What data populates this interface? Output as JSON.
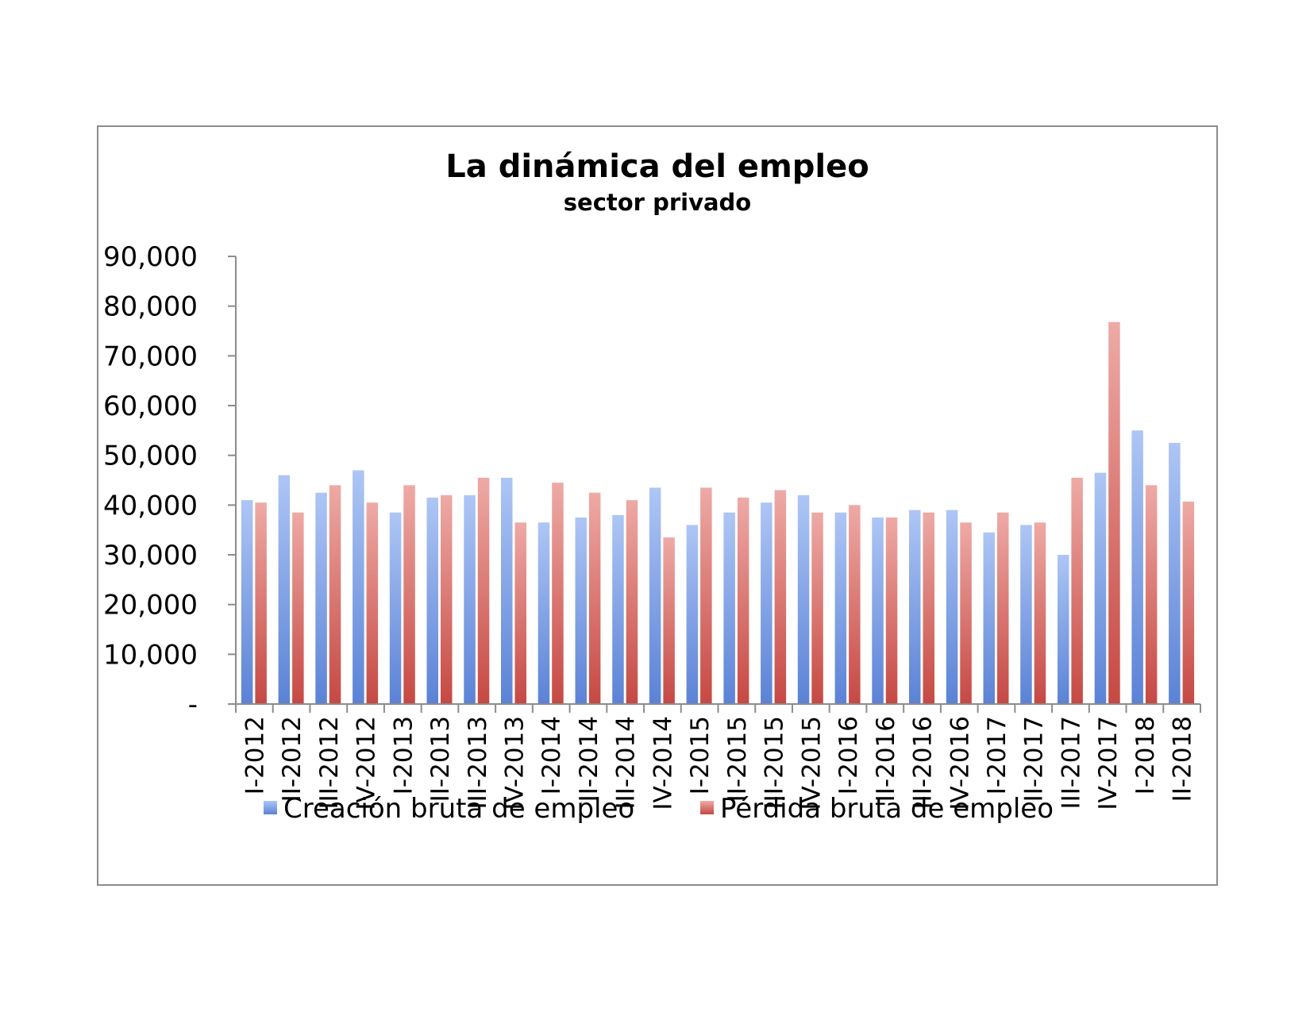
{
  "chart_data": {
    "type": "bar",
    "title": "La dinámica del empleo",
    "subtitle": "sector privado",
    "xlabel": "",
    "ylabel": "",
    "ylim": [
      0,
      90000
    ],
    "yticks": [
      0,
      10000,
      20000,
      30000,
      40000,
      50000,
      60000,
      70000,
      80000,
      90000
    ],
    "ytick_labels": [
      "-",
      "10,000",
      "20,000",
      "30,000",
      "40,000",
      "50,000",
      "60,000",
      "70,000",
      "80,000",
      "90,000"
    ],
    "grid": false,
    "legend_position": "bottom",
    "categories": [
      "I-2012",
      "II-2012",
      "III-2012",
      "IV-2012",
      "I-2013",
      "II-2013",
      "III-2013",
      "IV-2013",
      "I-2014",
      "II-2014",
      "III-2014",
      "IV-2014",
      "I-2015",
      "II-2015",
      "III-2015",
      "IV-2015",
      "I-2016",
      "II-2016",
      "III-2016",
      "IV-2016",
      "I-2017",
      "II-2017",
      "III-2017",
      "IV-2017",
      "I-2018",
      "II-2018"
    ],
    "series": [
      {
        "name": "Creación bruta de empleo",
        "color": "#7b9fe0",
        "color_light": "#aec6f5",
        "values": [
          41000,
          46000,
          42500,
          47000,
          38500,
          41500,
          42000,
          45500,
          36500,
          37500,
          38000,
          43500,
          36000,
          38500,
          40500,
          42000,
          38500,
          37500,
          39000,
          39000,
          34500,
          36000,
          30000,
          46500,
          55000,
          52500
        ]
      },
      {
        "name": "Pérdida bruta de empleo",
        "color": "#cf5a55",
        "color_light": "#eeaaa6",
        "values": [
          40500,
          38500,
          44000,
          40500,
          44000,
          42000,
          45500,
          36500,
          44500,
          42500,
          41000,
          33500,
          43500,
          41500,
          43000,
          38500,
          40000,
          37500,
          38500,
          36500,
          38500,
          36500,
          45500,
          76800,
          44000,
          40700
        ]
      }
    ]
  }
}
